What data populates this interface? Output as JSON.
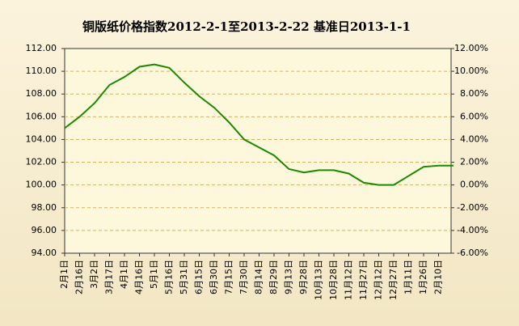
{
  "chart_data": {
    "type": "line",
    "title": "铜版纸价格指数2012-2-1至2013-2-22 基准日2013-1-1",
    "categories": [
      "2月1日",
      "2月16日",
      "3月2日",
      "3月17日",
      "4月1日",
      "4月16日",
      "5月1日",
      "5月16日",
      "5月31日",
      "6月15日",
      "6月30日",
      "7月15日",
      "7月30日",
      "8月14日",
      "8月29日",
      "9月13日",
      "9月28日",
      "10月13日",
      "10月28日",
      "11月12日",
      "11月27日",
      "12月12日",
      "12月27日",
      "1月11日",
      "1月26日",
      "2月10日",
      null
    ],
    "series": [
      {
        "name": "铜版纸价格指数",
        "color": "#1a8a00",
        "values": [
          105.0,
          106.0,
          107.2,
          108.8,
          109.5,
          110.4,
          110.6,
          110.3,
          109.0,
          107.8,
          106.8,
          105.5,
          104.0,
          103.3,
          102.6,
          101.4,
          101.1,
          101.3,
          101.3,
          101.0,
          100.2,
          100.0,
          100.0,
          100.8,
          101.6,
          101.7,
          101.7
        ]
      }
    ],
    "ylim": [
      94,
      112
    ],
    "yticks": [
      {
        "value": 94,
        "label": "94.00"
      },
      {
        "value": 96,
        "label": "96.00"
      },
      {
        "value": 98,
        "label": "98.00"
      },
      {
        "value": 100,
        "label": "100.00"
      },
      {
        "value": 102,
        "label": "102.00"
      },
      {
        "value": 104,
        "label": "104.00"
      },
      {
        "value": 106,
        "label": "106.00"
      },
      {
        "value": 108,
        "label": "108.00"
      },
      {
        "value": 110,
        "label": "110.00"
      },
      {
        "value": 112,
        "label": "112.00"
      }
    ],
    "y2lim": [
      -6,
      12
    ],
    "y2ticks": [
      {
        "value": -6,
        "label": "-6.00%"
      },
      {
        "value": -4,
        "label": "-4.00%"
      },
      {
        "value": -2,
        "label": "-2.00%"
      },
      {
        "value": 0,
        "label": "0.00%"
      },
      {
        "value": 2,
        "label": "2.00%"
      },
      {
        "value": 4,
        "label": "4.00%"
      },
      {
        "value": 6,
        "label": "6.00%"
      },
      {
        "value": 8,
        "label": "8.00%"
      },
      {
        "value": 10,
        "label": "10.00%"
      },
      {
        "value": 12,
        "label": "12.00%"
      }
    ],
    "grid": true
  }
}
